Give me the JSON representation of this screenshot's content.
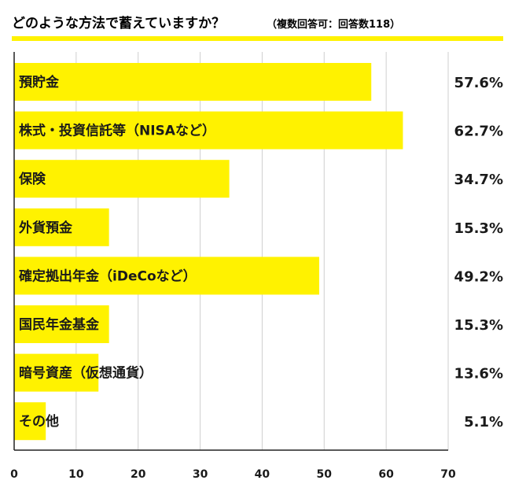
{
  "title": {
    "main": "どのような方法で蓄えていますか？",
    "sub": "（複数回答可：回答数118）"
  },
  "colors": {
    "bar": "#fff200",
    "accent_line": "#fff200",
    "grid": "#cfcfcf",
    "axis": "#222222",
    "text": "#1a1a1a"
  },
  "chart_data": {
    "type": "bar",
    "orientation": "horizontal",
    "categories": [
      "預貯金",
      "株式・投資信託等（NISAなど）",
      "保険",
      "外貨預金",
      "確定拠出年金（iDeCoなど）",
      "国民年金基金",
      "暗号資産（仮想通貨）",
      "その他"
    ],
    "values": [
      57.6,
      62.7,
      34.7,
      15.3,
      49.2,
      15.3,
      13.6,
      5.1
    ],
    "value_labels": [
      "57.6%",
      "62.7%",
      "34.7%",
      "15.3%",
      "49.2%",
      "15.3%",
      "13.6%",
      "5.1%"
    ],
    "xlim": [
      0,
      70
    ],
    "x_ticks": [
      0,
      10,
      20,
      30,
      40,
      50,
      60,
      70
    ],
    "x_tick_labels": [
      "0",
      "10",
      "20",
      "30",
      "40",
      "50",
      "60",
      "70"
    ],
    "grid": true,
    "legend": "none"
  }
}
